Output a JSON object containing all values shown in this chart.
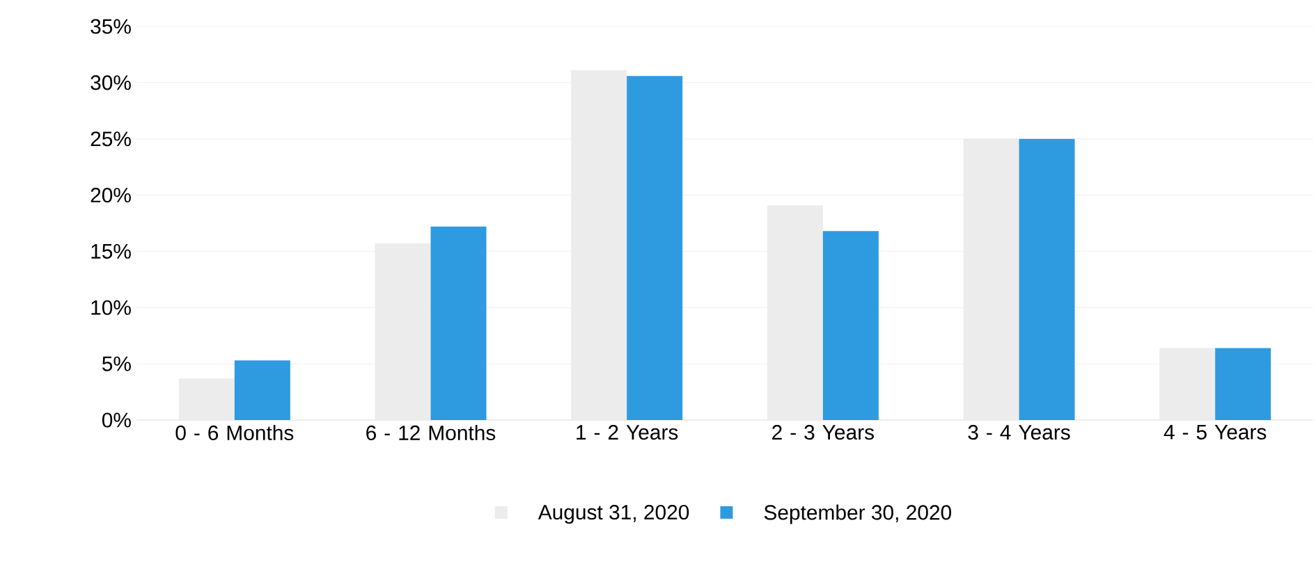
{
  "chart_data": {
    "type": "bar",
    "categories": [
      "0 - 6 Months",
      "6 - 12 Months",
      "1 - 2 Years",
      "2 - 3 Years",
      "3 - 4 Years",
      "4 - 5 Years"
    ],
    "series": [
      {
        "name": "August 31, 2020",
        "color": "#ececec",
        "values": [
          3.7,
          15.7,
          31.1,
          19.1,
          25.0,
          6.4
        ]
      },
      {
        "name": "September 30, 2020",
        "color": "#2e9ae0",
        "values": [
          5.3,
          17.2,
          30.6,
          16.8,
          25.0,
          6.4
        ]
      }
    ],
    "ylim": [
      0,
      35
    ],
    "yticks": [
      {
        "value": 0,
        "label": "0%"
      },
      {
        "value": 5,
        "label": "5%"
      },
      {
        "value": 10,
        "label": "10%"
      },
      {
        "value": 15,
        "label": "15%"
      },
      {
        "value": 20,
        "label": "20%"
      },
      {
        "value": 25,
        "label": "25%"
      },
      {
        "value": 30,
        "label": "30%"
      },
      {
        "value": 35,
        "label": "35%"
      }
    ],
    "grid": "y",
    "legend": "bottom"
  }
}
